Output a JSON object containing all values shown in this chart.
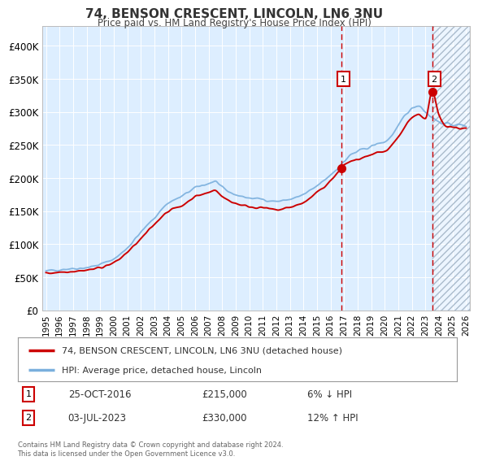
{
  "title": "74, BENSON CRESCENT, LINCOLN, LN6 3NU",
  "subtitle": "Price paid vs. HM Land Registry's House Price Index (HPI)",
  "ylabel_ticks": [
    "£0",
    "£50K",
    "£100K",
    "£150K",
    "£200K",
    "£250K",
    "£300K",
    "£350K",
    "£400K"
  ],
  "ytick_values": [
    0,
    50000,
    100000,
    150000,
    200000,
    250000,
    300000,
    350000,
    400000
  ],
  "ylim": [
    0,
    430000
  ],
  "xlim_start": 1994.7,
  "xlim_end": 2026.3,
  "year_start": 1995,
  "year_end": 2026,
  "transaction1_date": 2016.82,
  "transaction1_price": 215000,
  "transaction1_label": "1",
  "transaction1_display": "25-OCT-2016",
  "transaction1_amount": "£215,000",
  "transaction1_hpi": "6% ↓ HPI",
  "transaction2_date": 2023.5,
  "transaction2_price": 330000,
  "transaction2_label": "2",
  "transaction2_display": "03-JUL-2023",
  "transaction2_amount": "£330,000",
  "transaction2_hpi": "12% ↑ HPI",
  "hpi_line_color": "#7aafdd",
  "price_line_color": "#cc0000",
  "bg_color": "#ddeeff",
  "hatch_bg_color": "#e8eef5",
  "grid_color": "#c8d8e8",
  "footer_text": "Contains HM Land Registry data © Crown copyright and database right 2024.\nThis data is licensed under the Open Government Licence v3.0.",
  "legend_label1": "74, BENSON CRESCENT, LINCOLN, LN6 3NU (detached house)",
  "legend_label2": "HPI: Average price, detached house, Lincoln"
}
